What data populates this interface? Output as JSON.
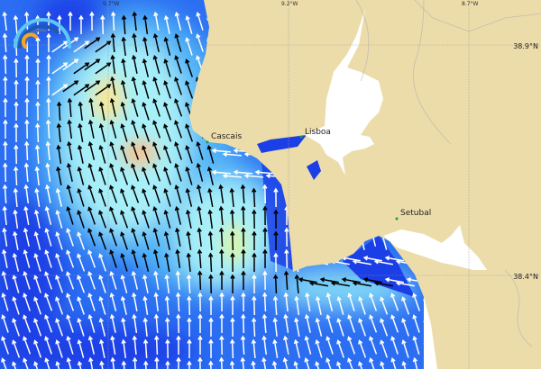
{
  "map": {
    "places": [
      {
        "name": "Cascais"
      },
      {
        "name": "Lisboa"
      },
      {
        "name": "Setubal"
      }
    ],
    "longitude_labels": [
      "9.7°W",
      "9.2°W",
      "8.7°W"
    ],
    "latitude_labels": [
      "38.9°N",
      "38.4°N"
    ],
    "colors": {
      "land": "#ecdcaa",
      "ocean_deep": "#1a3fe6",
      "ocean_mid": "#3f9cf5",
      "ocean_light": "#a8f0f8",
      "ocean_peak": "#f2e8a0",
      "arrow_dark": "#000000",
      "arrow_light": "#ffffff",
      "city_marker": "#2a9a2a"
    },
    "arrow_direction": "north-northwest",
    "logo_icon": "wave-arc-logo-icon"
  }
}
